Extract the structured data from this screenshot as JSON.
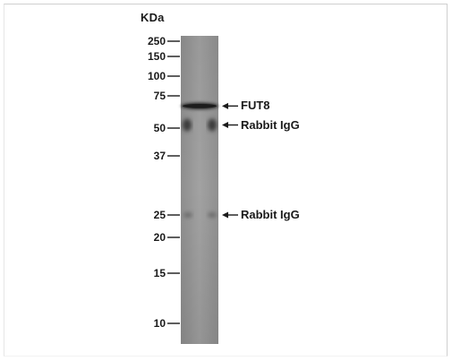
{
  "figure": {
    "unit_label": "KDa",
    "markers": [
      {
        "label": "250",
        "kda": 250
      },
      {
        "label": "150",
        "kda": 150
      },
      {
        "label": "100",
        "kda": 100
      },
      {
        "label": "75",
        "kda": 75
      },
      {
        "label": "50",
        "kda": 50
      },
      {
        "label": "37",
        "kda": 37
      },
      {
        "label": "25",
        "kda": 25
      },
      {
        "label": "20",
        "kda": 20
      },
      {
        "label": "15",
        "kda": 15
      },
      {
        "label": "10",
        "kda": 10
      }
    ],
    "bands": [
      {
        "label": "FUT8",
        "kda": 66
      },
      {
        "label": "Rabbit IgG",
        "kda": 52
      },
      {
        "label": "Rabbit IgG",
        "kda": 25
      }
    ],
    "colors": {
      "lane": "#9a9a9a",
      "band": "#2b2b2b",
      "text": "#1a1a1a"
    }
  }
}
